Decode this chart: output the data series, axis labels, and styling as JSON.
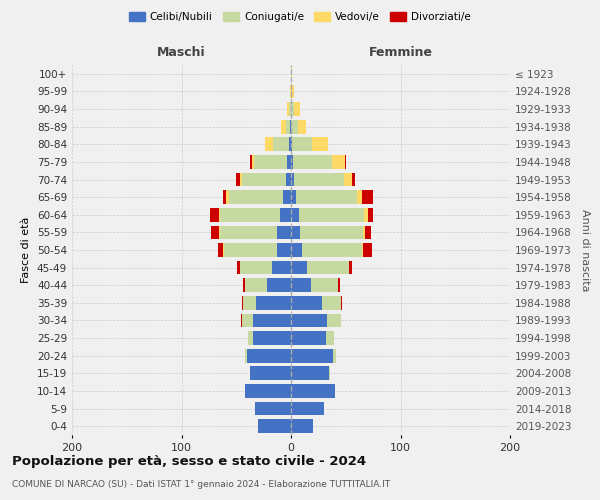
{
  "age_groups": [
    "0-4",
    "5-9",
    "10-14",
    "15-19",
    "20-24",
    "25-29",
    "30-34",
    "35-39",
    "40-44",
    "45-49",
    "50-54",
    "55-59",
    "60-64",
    "65-69",
    "70-74",
    "75-79",
    "80-84",
    "85-89",
    "90-94",
    "95-99",
    "100+"
  ],
  "birth_years": [
    "2019-2023",
    "2014-2018",
    "2009-2013",
    "2004-2008",
    "1999-2003",
    "1994-1998",
    "1989-1993",
    "1984-1988",
    "1979-1983",
    "1974-1978",
    "1969-1973",
    "1964-1968",
    "1959-1963",
    "1954-1958",
    "1949-1953",
    "1944-1948",
    "1939-1943",
    "1934-1938",
    "1929-1933",
    "1924-1928",
    "≤ 1923"
  ],
  "colors": {
    "celibi": "#4472C4",
    "coniugati": "#c5d9a0",
    "vedovi": "#FFD966",
    "divorziati": "#CC0000"
  },
  "males": {
    "celibi": [
      30,
      33,
      42,
      37,
      40,
      35,
      35,
      32,
      22,
      17,
      13,
      13,
      10,
      7,
      5,
      4,
      2,
      1,
      0,
      0,
      0
    ],
    "coniugati": [
      0,
      0,
      0,
      0,
      2,
      4,
      10,
      12,
      20,
      30,
      48,
      52,
      55,
      50,
      40,
      30,
      14,
      4,
      2,
      0,
      0
    ],
    "vedovi": [
      0,
      0,
      0,
      0,
      0,
      0,
      0,
      0,
      0,
      0,
      1,
      1,
      1,
      2,
      2,
      2,
      8,
      4,
      2,
      1,
      0
    ],
    "divorziati": [
      0,
      0,
      0,
      0,
      0,
      0,
      1,
      1,
      2,
      2,
      5,
      7,
      8,
      3,
      3,
      1,
      0,
      0,
      0,
      0,
      0
    ]
  },
  "females": {
    "celibi": [
      20,
      30,
      40,
      35,
      38,
      32,
      33,
      28,
      18,
      15,
      10,
      8,
      7,
      5,
      3,
      2,
      1,
      0,
      0,
      0,
      0
    ],
    "coniugati": [
      0,
      0,
      0,
      1,
      3,
      7,
      13,
      18,
      25,
      38,
      55,
      58,
      60,
      55,
      45,
      35,
      18,
      6,
      3,
      1,
      0
    ],
    "vedovi": [
      0,
      0,
      0,
      0,
      0,
      0,
      0,
      0,
      0,
      0,
      1,
      2,
      3,
      5,
      8,
      12,
      15,
      8,
      5,
      2,
      1
    ],
    "divorziati": [
      0,
      0,
      0,
      0,
      0,
      0,
      0,
      1,
      2,
      3,
      8,
      5,
      5,
      10,
      2,
      1,
      0,
      0,
      0,
      0,
      0
    ]
  },
  "xlim": [
    -200,
    200
  ],
  "xticks": [
    -200,
    -100,
    0,
    100,
    200
  ],
  "xticklabels": [
    "200",
    "100",
    "0",
    "100",
    "200"
  ],
  "title": "Popolazione per età, sesso e stato civile - 2024",
  "subtitle": "COMUNE DI NARCAO (SU) - Dati ISTAT 1° gennaio 2024 - Elaborazione TUTTITALIA.IT",
  "ylabel_left": "Fasce di età",
  "ylabel_right": "Anni di nascita",
  "label_maschi": "Maschi",
  "label_femmine": "Femmine",
  "legend_labels": [
    "Celibi/Nubili",
    "Coniugati/e",
    "Vedovi/e",
    "Divorziati/e"
  ],
  "background_color": "#f0f0f0",
  "grid_color": "#cccccc"
}
